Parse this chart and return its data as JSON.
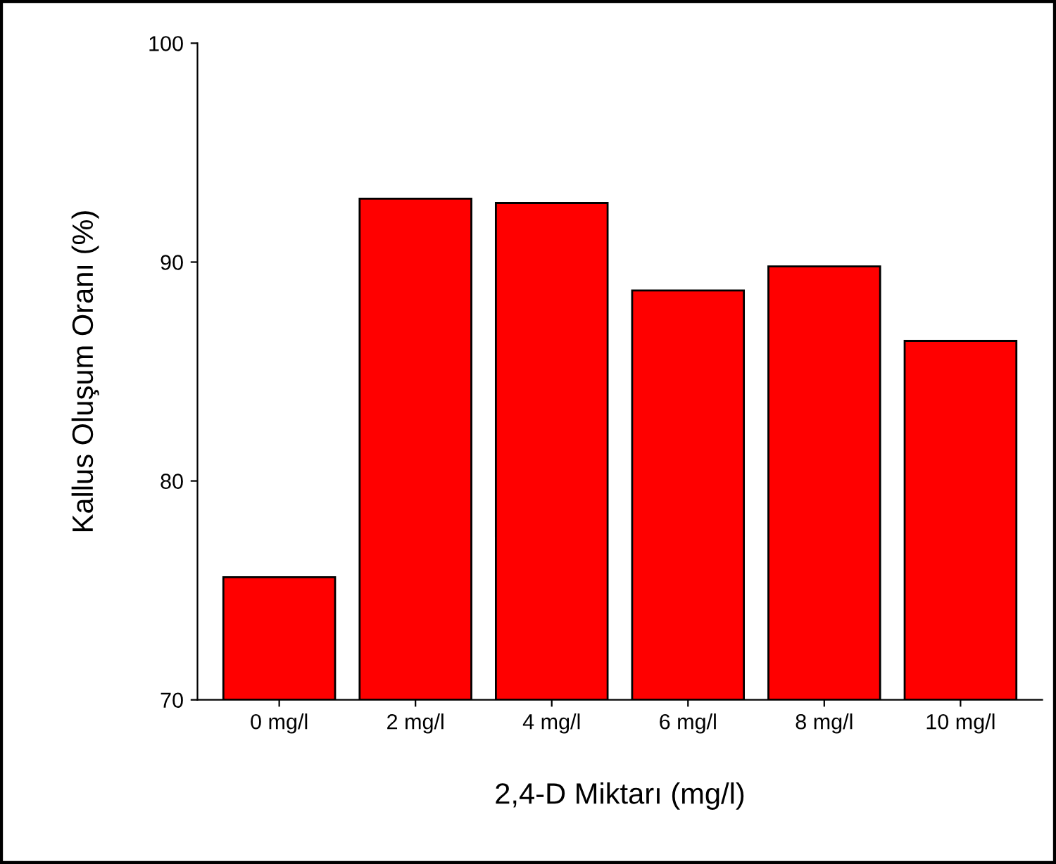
{
  "chart_data": {
    "type": "bar",
    "xlabel": "2,4-D Miktarı (mg/l)",
    "ylabel": "Kallus Oluşum Oranı (%)",
    "categories": [
      "0 mg/l",
      "2 mg/l",
      "4 mg/l",
      "6 mg/l",
      "8 mg/l",
      "10 mg/l"
    ],
    "values": [
      75.6,
      92.9,
      92.7,
      88.7,
      89.8,
      86.4
    ],
    "color": "#ff0000",
    "ylim": [
      70,
      100
    ],
    "yticks": [
      70,
      80,
      90,
      100
    ],
    "grid": false
  }
}
